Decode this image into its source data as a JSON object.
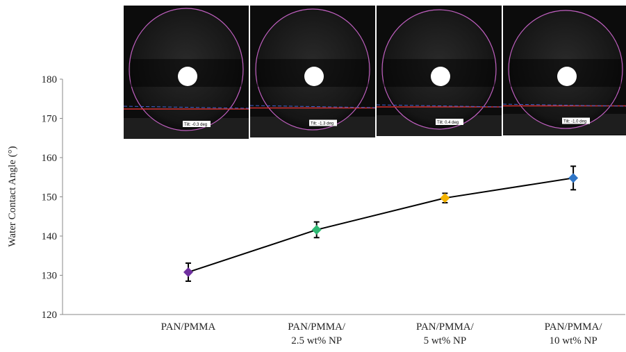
{
  "chart_data": {
    "type": "line",
    "y_label": "Water Contact Angle (°)",
    "categories": [
      "PAN/PMMA",
      "PAN/PMMA/\n2.5 wt% NP",
      "PAN/PMMA/\n5 wt% NP",
      "PAN/PMMA/\n10 wt% NP"
    ],
    "series": [
      {
        "color": "#000000",
        "point_colors": [
          "#7030a0",
          "#2eb872",
          "#f5b400",
          "#2f75c6"
        ],
        "values": [
          130.8,
          141.6,
          149.7,
          154.8
        ],
        "errors": [
          2.3,
          2.0,
          1.2,
          3.0
        ]
      }
    ],
    "ylim": [
      120,
      180
    ],
    "yticks": [
      120,
      130,
      140,
      150,
      160,
      170,
      180
    ],
    "grid": false
  },
  "droplet_images": [
    {
      "tilt": "Tilt: -0.3 deg"
    },
    {
      "tilt": "Tilt: -1.3 deg"
    },
    {
      "tilt": "Tilt: 0.4 deg"
    },
    {
      "tilt": "Tilt: -1.0 deg"
    }
  ]
}
